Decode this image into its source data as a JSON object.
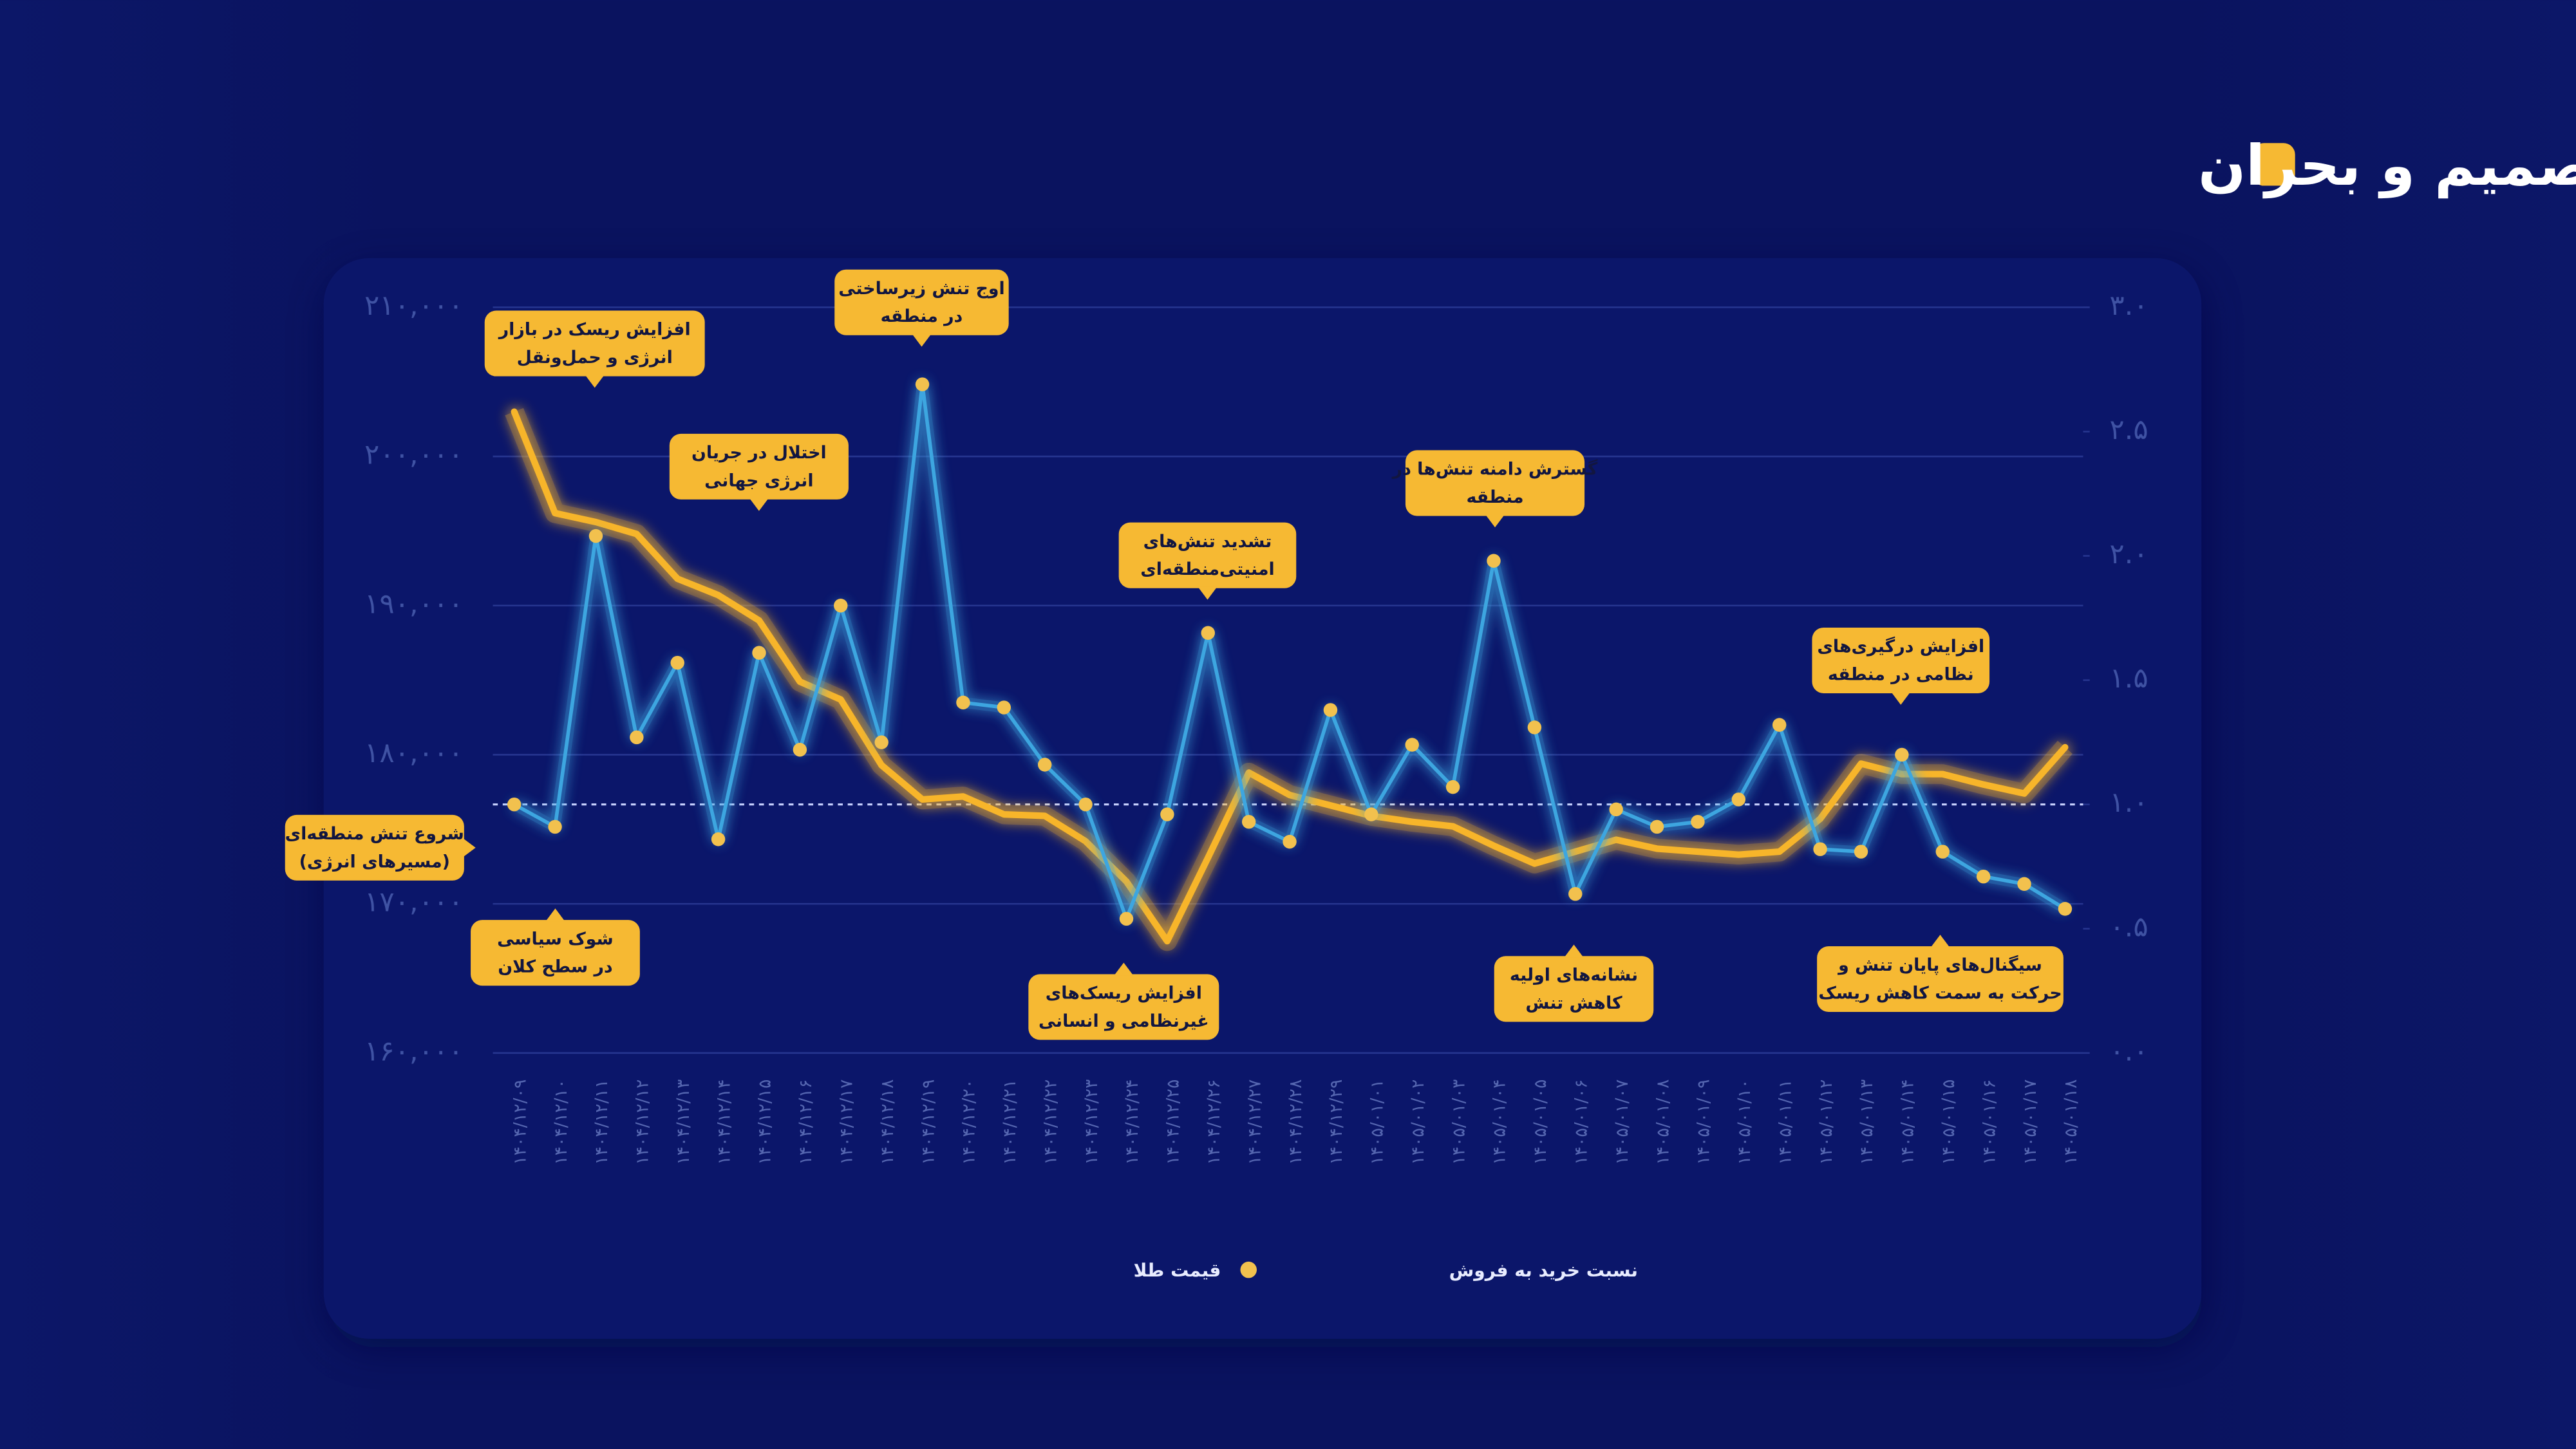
{
  "chart_data": {
    "type": "line",
    "title": "هم‌زمانی بازار، تصمیم و بحران",
    "categories": [
      "۱۴۰۴/۱۲/۰۹",
      "۱۴۰۴/۱۲/۱۰",
      "۱۴۰۴/۱۲/۱۱",
      "۱۴۰۴/۱۲/۱۲",
      "۱۴۰۴/۱۲/۱۳",
      "۱۴۰۴/۱۲/۱۴",
      "۱۴۰۴/۱۲/۱۵",
      "۱۴۰۴/۱۲/۱۶",
      "۱۴۰۴/۱۲/۱۷",
      "۱۴۰۴/۱۲/۱۸",
      "۱۴۰۴/۱۲/۱۹",
      "۱۴۰۴/۱۲/۲۰",
      "۱۴۰۴/۱۲/۲۱",
      "۱۴۰۴/۱۲/۲۲",
      "۱۴۰۴/۱۲/۲۳",
      "۱۴۰۴/۱۲/۲۴",
      "۱۴۰۴/۱۲/۲۵",
      "۱۴۰۴/۱۲/۲۶",
      "۱۴۰۴/۱۲/۲۷",
      "۱۴۰۴/۱۲/۲۸",
      "۱۴۰۴/۱۲/۲۹",
      "۱۴۰۵/۰۱/۰۱",
      "۱۴۰۵/۰۱/۰۲",
      "۱۴۰۵/۰۱/۰۳",
      "۱۴۰۵/۰۱/۰۴",
      "۱۴۰۵/۰۱/۰۵",
      "۱۴۰۵/۰۱/۰۶",
      "۱۴۰۵/۰۱/۰۷",
      "۱۴۰۵/۰۱/۰۸",
      "۱۴۰۵/۰۱/۰۹",
      "۱۴۰۵/۰۱/۱۰",
      "۱۴۰۵/۰۱/۱۱",
      "۱۴۰۵/۰۱/۱۲",
      "۱۴۰۵/۰۱/۱۳",
      "۱۴۰۵/۰۱/۱۴",
      "۱۴۰۵/۰۱/۱۵",
      "۱۴۰۵/۰۱/۱۶",
      "۱۴۰۵/۰۱/۱۷",
      "۱۴۰۵/۰۱/۱۸"
    ],
    "series": [
      {
        "name": "قیمت طلا",
        "color": "#f7b52c",
        "axis": "y",
        "values": [
          203000,
          196200,
          195600,
          194800,
          191800,
          190700,
          189000,
          184900,
          183700,
          179300,
          177000,
          177200,
          176000,
          175900,
          174200,
          171500,
          167500,
          173100,
          178800,
          177300,
          176600,
          175900,
          175500,
          175200,
          173900,
          172700,
          173500,
          174300,
          173700,
          173500,
          173300,
          173500,
          175700,
          179400,
          178700,
          178700,
          178000,
          177400,
          180500
        ]
      },
      {
        "name": "نسبت خرید به فروش",
        "color": "#3ea6e0",
        "marker_color": "#f2c14e",
        "axis": "y2",
        "values": [
          1.0,
          0.91,
          2.08,
          1.27,
          1.57,
          0.86,
          1.61,
          1.22,
          1.8,
          1.25,
          2.69,
          1.41,
          1.39,
          1.16,
          1.0,
          0.54,
          0.96,
          1.69,
          0.93,
          0.85,
          1.38,
          0.96,
          1.24,
          1.07,
          1.98,
          1.31,
          0.64,
          0.98,
          0.91,
          0.93,
          1.02,
          1.32,
          0.82,
          0.81,
          1.2,
          0.81,
          0.71,
          0.68,
          0.58
        ]
      }
    ],
    "ylim": [
      160000,
      210000
    ],
    "yticks": [
      {
        "value": 160000,
        "label": "۱۶۰,۰۰۰"
      },
      {
        "value": 170000,
        "label": "۱۷۰,۰۰۰"
      },
      {
        "value": 180000,
        "label": "۱۸۰,۰۰۰"
      },
      {
        "value": 190000,
        "label": "۱۹۰,۰۰۰"
      },
      {
        "value": 200000,
        "label": "۲۰۰,۰۰۰"
      },
      {
        "value": 210000,
        "label": "۲۱۰,۰۰۰"
      }
    ],
    "y2lim": [
      0,
      3.0
    ],
    "y2ticks": [
      {
        "value": 0,
        "label": "۰.۰"
      },
      {
        "value": 0.5,
        "label": "۰.۵"
      },
      {
        "value": 1.0,
        "label": "۱.۰"
      },
      {
        "value": 1.5,
        "label": "۱.۵"
      },
      {
        "value": 2.0,
        "label": "۲.۰"
      },
      {
        "value": 2.5,
        "label": "۲.۵"
      },
      {
        "value": 3.0,
        "label": "۳.۰"
      }
    ],
    "y2_reference_line": 1.0,
    "grid": true,
    "legend": "bottom",
    "annotations": [
      {
        "lines": [
          "افزایش ریسک در بازار",
          "انرژی و حمل‌ونقل"
        ]
      },
      {
        "lines": [
          "اوج تنش زیرساختی",
          "در منطقه"
        ]
      },
      {
        "lines": [
          "اختلال در جریان",
          "انرژی جهانی"
        ]
      },
      {
        "lines": [
          "تشدید تنش‌های",
          "امنیتی‌منطقه‌ای"
        ]
      },
      {
        "lines": [
          "گسترش دامنه تنش‌ها در",
          "منطقه"
        ]
      },
      {
        "lines": [
          "افزایش درگیری‌های",
          "نظامی در منطقه"
        ]
      },
      {
        "lines": [
          "شروع تنش منطقه‌ای",
          "(مسیرهای انرژی)"
        ]
      },
      {
        "lines": [
          "شوک سیاسی",
          "در سطح کلان"
        ]
      },
      {
        "lines": [
          "افزایش ریسک‌های",
          "غیرنظامی و انسانی"
        ]
      },
      {
        "lines": [
          "نشانه‌های اولیه",
          "کاهش تنش"
        ]
      },
      {
        "lines": [
          "سیگنال‌های پایان تنش و",
          "حرکت به سمت کاهش ریسک"
        ]
      }
    ]
  }
}
